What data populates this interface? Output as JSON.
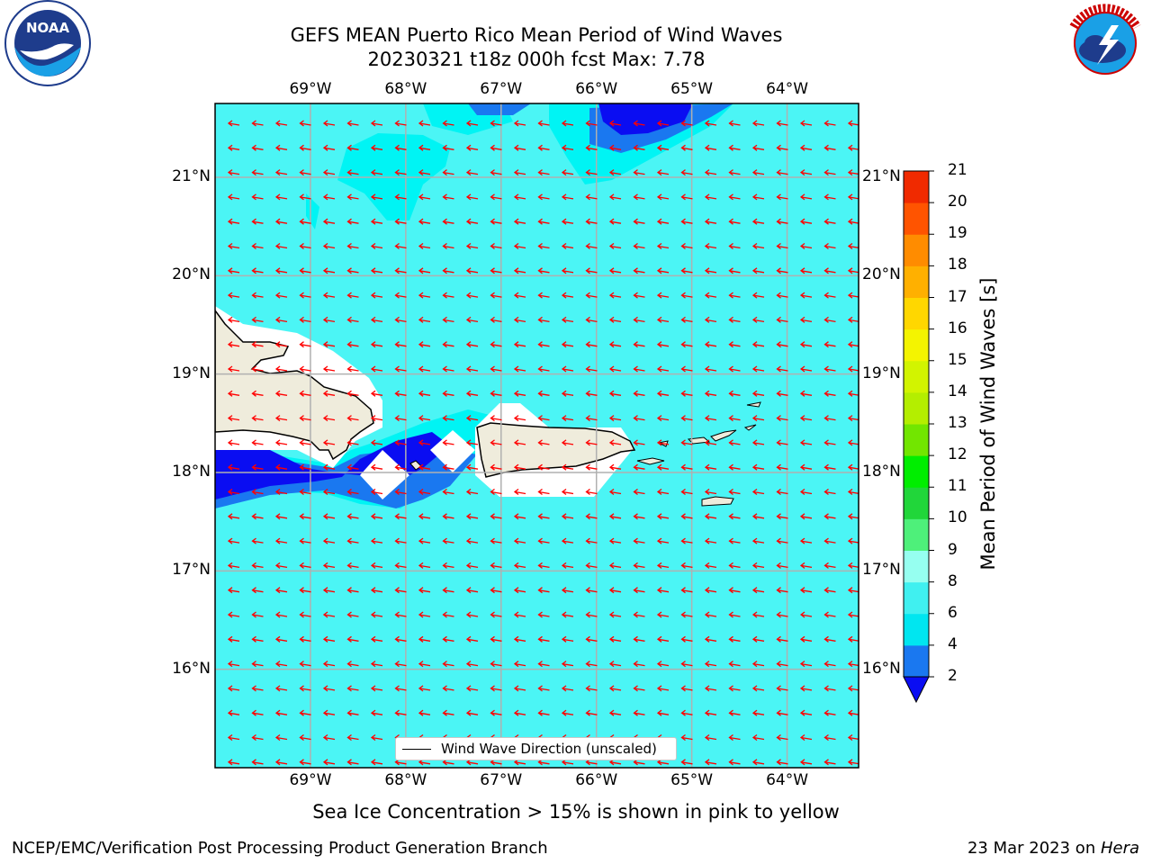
{
  "title": {
    "line1": "GEFS MEAN Puerto Rico Mean Period of Wind Waves",
    "line2": "20230321 t18z 000h fcst   Max: 7.78"
  },
  "logos": {
    "left": {
      "name": "NOAA",
      "ring_text": "NATIONAL OCEANIC AND ATMOSPHERIC ADMINISTRATION · U.S. DEPARTMENT OF COMMERCE"
    },
    "right": {
      "name": "NATIONAL WEATHER SERVICE"
    }
  },
  "axes": {
    "lon_labels": [
      "69°W",
      "68°W",
      "67°W",
      "66°W",
      "65°W",
      "64°W"
    ],
    "lat_labels": [
      "21°N",
      "20°N",
      "19°N",
      "18°N",
      "17°N",
      "16°N"
    ],
    "lon_range": [
      -70.0,
      -63.25
    ],
    "lat_range": [
      15.0,
      21.75
    ],
    "gridlines": true
  },
  "legend": {
    "label": "Wind Wave Direction (unscaled)"
  },
  "colorbar": {
    "label": "Mean Period of Wind Waves [s]",
    "ticks": [
      "2",
      "4",
      "6",
      "8",
      "9",
      "10",
      "11",
      "12",
      "13",
      "14",
      "15",
      "16",
      "17",
      "18",
      "19",
      "20",
      "21"
    ],
    "colors": [
      "#0a0df2",
      "#1a78f0",
      "#00e6f0",
      "#40f0f0",
      "#96fff0",
      "#4ef07a",
      "#21d63a",
      "#00ee00",
      "#72e600",
      "#b4ee00",
      "#d2f400",
      "#f4f400",
      "#ffd700",
      "#ffb000",
      "#ff8c00",
      "#ff5400",
      "#f02a00",
      "#ff0000"
    ],
    "extend": "min"
  },
  "map_field": {
    "background_color": "#4bf5f5",
    "land_color": "#efecdc",
    "arrow_color": "#ff0000",
    "max_value": 7.78
  },
  "notes": {
    "sea_ice": "Sea Ice Concentration > 15% is shown in pink to yellow"
  },
  "footer": {
    "left": "NCEP/EMC/Verification Post Processing Product Generation Branch",
    "date": "23 Mar 2023 on ",
    "machine": "Hera"
  }
}
